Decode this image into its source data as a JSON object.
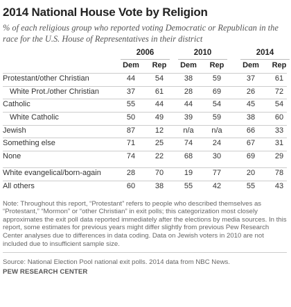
{
  "title": "2014 National House Vote by Religion",
  "subtitle": "% of each religious group who reported voting Democratic or Republican in the race for the U.S. House of Representatives in their district",
  "chart_data": {
    "type": "table",
    "years": [
      "2006",
      "2010",
      "2014"
    ],
    "columns": [
      "Dem",
      "Rep"
    ],
    "groups": [
      {
        "rows": [
          {
            "label": "Protestant/other Christian",
            "indent": false,
            "values": [
              "44",
              "54",
              "38",
              "59",
              "37",
              "61"
            ]
          },
          {
            "label": "White Prot./other Christian",
            "indent": true,
            "values": [
              "37",
              "61",
              "28",
              "69",
              "26",
              "72"
            ]
          },
          {
            "label": "Catholic",
            "indent": false,
            "values": [
              "55",
              "44",
              "44",
              "54",
              "45",
              "54"
            ]
          },
          {
            "label": "White Catholic",
            "indent": true,
            "values": [
              "50",
              "49",
              "39",
              "59",
              "38",
              "60"
            ]
          },
          {
            "label": "Jewish",
            "indent": false,
            "values": [
              "87",
              "12",
              "n/a",
              "n/a",
              "66",
              "33"
            ]
          },
          {
            "label": "Something else",
            "indent": false,
            "values": [
              "71",
              "25",
              "74",
              "24",
              "67",
              "31"
            ]
          },
          {
            "label": "None",
            "indent": false,
            "values": [
              "74",
              "22",
              "68",
              "30",
              "69",
              "29"
            ]
          }
        ]
      },
      {
        "rows": [
          {
            "label": "White evangelical/born-again",
            "indent": false,
            "values": [
              "28",
              "70",
              "19",
              "77",
              "20",
              "78"
            ]
          },
          {
            "label": "All others",
            "indent": false,
            "values": [
              "60",
              "38",
              "55",
              "42",
              "55",
              "43"
            ]
          }
        ]
      }
    ]
  },
  "note": "Note: Throughout this report, “Protestant” refers to people who described themselves as “Protestant,” “Mormon” or “other Christian” in exit polls; this categorization most closely approximates the exit poll data reported immediately after the elections by media sources. In this report, some estimates for previous years might differ slightly from previous Pew Research Center analyses due to differences in data coding. Data on Jewish voters in 2010 are not included due to insufficient sample size.",
  "source": "Source: National Election Pool national exit polls. 2014 data from NBC News.",
  "org": "PEW RESEARCH CENTER"
}
